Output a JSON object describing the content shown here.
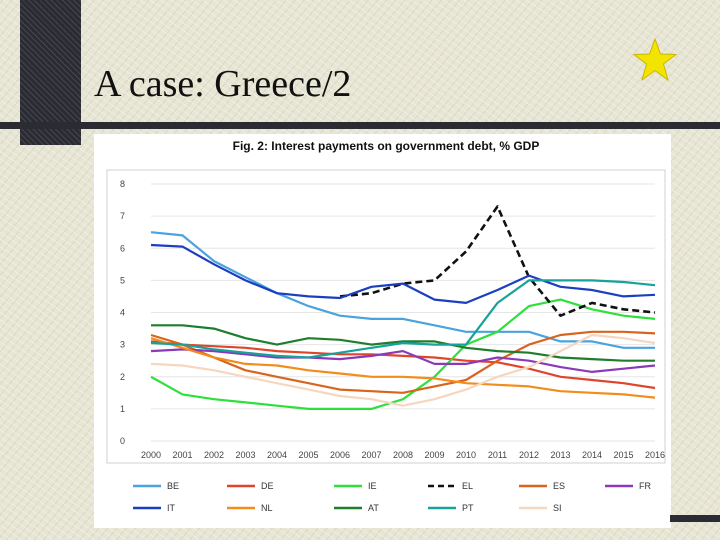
{
  "slide": {
    "title": "A case: Greece/2"
  },
  "colors": {
    "sidebar": "#2b2b33",
    "star": "#f3e400"
  },
  "icons": {
    "star": "star-icon"
  },
  "chart_data": {
    "type": "line",
    "title": "Fig. 2: Interest payments on government debt, % GDP",
    "xlabel": "",
    "ylabel": "",
    "ylim": [
      0,
      8
    ],
    "yticks": [
      0,
      1,
      2,
      3,
      4,
      5,
      6,
      7,
      8
    ],
    "grid": true,
    "legend_position": "bottom",
    "categories": [
      "2000",
      "2001",
      "2002",
      "2003",
      "2004",
      "2005",
      "2006",
      "2007",
      "2008",
      "2009",
      "2010",
      "2011",
      "2012",
      "2013",
      "2014",
      "2015",
      "2016"
    ],
    "series": [
      {
        "name": "BE",
        "color": "#4aa3df",
        "dash": false,
        "values": [
          6.5,
          6.4,
          5.6,
          5.1,
          4.6,
          4.2,
          3.9,
          3.8,
          3.8,
          3.6,
          3.4,
          3.4,
          3.4,
          3.1,
          3.1,
          2.9,
          2.9
        ]
      },
      {
        "name": "DE",
        "color": "#e0452c",
        "dash": false,
        "values": [
          3.1,
          3.0,
          2.95,
          2.9,
          2.8,
          2.75,
          2.7,
          2.7,
          2.65,
          2.6,
          2.5,
          2.45,
          2.25,
          2.0,
          1.9,
          1.8,
          1.65
        ]
      },
      {
        "name": "IE",
        "color": "#2ee03a",
        "dash": false,
        "values": [
          2.0,
          1.45,
          1.3,
          1.2,
          1.1,
          1.0,
          1.0,
          1.0,
          1.3,
          2.0,
          3.0,
          3.4,
          4.2,
          4.4,
          4.1,
          3.9,
          3.8
        ]
      },
      {
        "name": "EL",
        "color": "#111111",
        "dash": true,
        "values": [
          null,
          null,
          null,
          null,
          null,
          null,
          4.5,
          4.6,
          4.9,
          5.0,
          5.9,
          7.3,
          5.1,
          3.9,
          4.3,
          4.1,
          4.0
        ]
      },
      {
        "name": "ES",
        "color": "#d9641e",
        "dash": false,
        "values": [
          3.3,
          3.0,
          2.6,
          2.2,
          2.0,
          1.8,
          1.6,
          1.55,
          1.5,
          1.7,
          1.9,
          2.5,
          3.0,
          3.3,
          3.4,
          3.4,
          3.35
        ]
      },
      {
        "name": "FR",
        "color": "#8a3ab9",
        "dash": false,
        "values": [
          2.8,
          2.85,
          2.8,
          2.7,
          2.6,
          2.6,
          2.55,
          2.65,
          2.8,
          2.4,
          2.4,
          2.6,
          2.5,
          2.3,
          2.15,
          2.25,
          2.35
        ]
      },
      {
        "name": "IT",
        "color": "#1c3fbf",
        "dash": false,
        "values": [
          6.1,
          6.05,
          5.5,
          5.0,
          4.6,
          4.5,
          4.45,
          4.8,
          4.9,
          4.4,
          4.3,
          4.7,
          5.15,
          4.8,
          4.7,
          4.5,
          4.55
        ]
      },
      {
        "name": "NL",
        "color": "#f28c1c",
        "dash": false,
        "values": [
          3.2,
          2.9,
          2.6,
          2.4,
          2.35,
          2.2,
          2.1,
          2.0,
          2.0,
          1.95,
          1.8,
          1.75,
          1.7,
          1.55,
          1.5,
          1.45,
          1.35
        ]
      },
      {
        "name": "AT",
        "color": "#1e7e2e",
        "dash": false,
        "values": [
          3.6,
          3.6,
          3.5,
          3.2,
          3.0,
          3.2,
          3.15,
          3.0,
          3.1,
          3.1,
          2.9,
          2.8,
          2.75,
          2.6,
          2.55,
          2.5,
          2.5
        ]
      },
      {
        "name": "PT",
        "color": "#17a29a",
        "dash": false,
        "values": [
          3.05,
          3.0,
          2.85,
          2.75,
          2.65,
          2.6,
          2.75,
          2.9,
          3.05,
          3.0,
          3.0,
          4.3,
          5.0,
          5.0,
          5.0,
          4.95,
          4.85
        ]
      },
      {
        "name": "SI",
        "color": "#f5d7c0",
        "dash": false,
        "values": [
          2.4,
          2.35,
          2.2,
          2.0,
          1.8,
          1.6,
          1.4,
          1.3,
          1.1,
          1.3,
          1.6,
          2.0,
          2.3,
          2.8,
          3.3,
          3.2,
          3.05
        ]
      }
    ]
  }
}
